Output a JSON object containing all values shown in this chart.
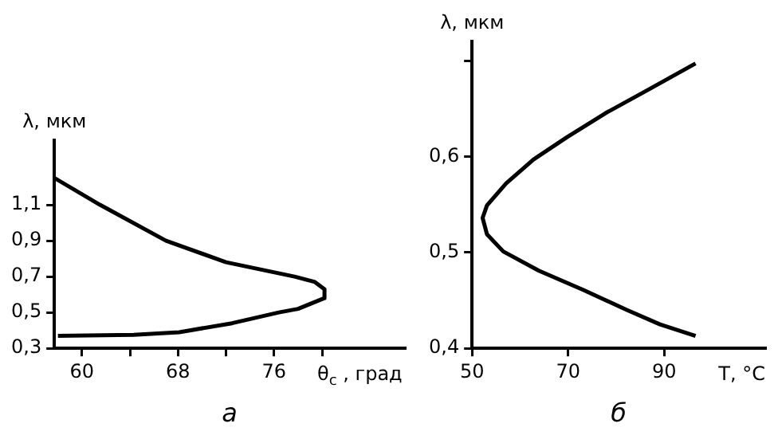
{
  "chart_data": [
    {
      "type": "line",
      "title": "а",
      "xlabel": "θ$_{c}$ , град",
      "ylabel": "λ, мкм",
      "marker": "none",
      "xlim": [
        57.7,
        86.9
      ],
      "ylim": [
        0.3,
        1.46
      ],
      "xticks": [
        60,
        {
          "value": 64,
          "label": null
        },
        68,
        {
          "value": 72,
          "label": null
        },
        76,
        {
          "value": 80,
          "label": null
        }
      ],
      "yticks": [
        {
          "value": 0.3,
          "label": "0,3"
        },
        {
          "value": 0.5,
          "label": "0,5"
        },
        {
          "value": 0.7,
          "label": "0,7"
        },
        {
          "value": 0.9,
          "label": "0,9"
        },
        {
          "value": 1.1,
          "label": "1,1"
        }
      ],
      "series": [
        {
          "color": "#000000",
          "x": [
            57.7,
            61.5,
            67,
            72,
            77.7,
            79.4,
            80.2,
            80.2,
            78,
            76.4,
            72.5,
            68.1,
            64.3,
            58
          ],
          "values": [
            1.25,
            1.1,
            0.9,
            0.78,
            0.7,
            0.67,
            0.63,
            0.58,
            0.52,
            0.5,
            0.44,
            0.39,
            0.375,
            0.37
          ]
        }
      ]
    },
    {
      "type": "line",
      "title": "б",
      "xlabel": "T, °C",
      "ylabel": "λ, мкм",
      "marker": "none",
      "xlim": [
        50,
        111
      ],
      "ylim": [
        0.4,
        0.72
      ],
      "xticks": [
        50,
        70,
        90
      ],
      "yticks": [
        {
          "value": 0.4,
          "label": "0,4"
        },
        {
          "value": 0.5,
          "label": "0,5"
        },
        {
          "value": 0.6,
          "label": "0,6"
        },
        {
          "value": 0.7,
          "label": null
        }
      ],
      "series": [
        {
          "color": "#000000",
          "x": [
            96.5,
            86.8,
            77.7,
            69.7,
            62.8,
            57.1,
            53.1,
            52.2,
            53.1,
            56.5,
            63.9,
            73.1,
            82.2,
            89.1,
            96.5
          ],
          "values": [
            0.697,
            0.67,
            0.645,
            0.62,
            0.597,
            0.572,
            0.549,
            0.536,
            0.519,
            0.501,
            0.481,
            0.461,
            0.44,
            0.425,
            0.413
          ]
        }
      ]
    }
  ]
}
